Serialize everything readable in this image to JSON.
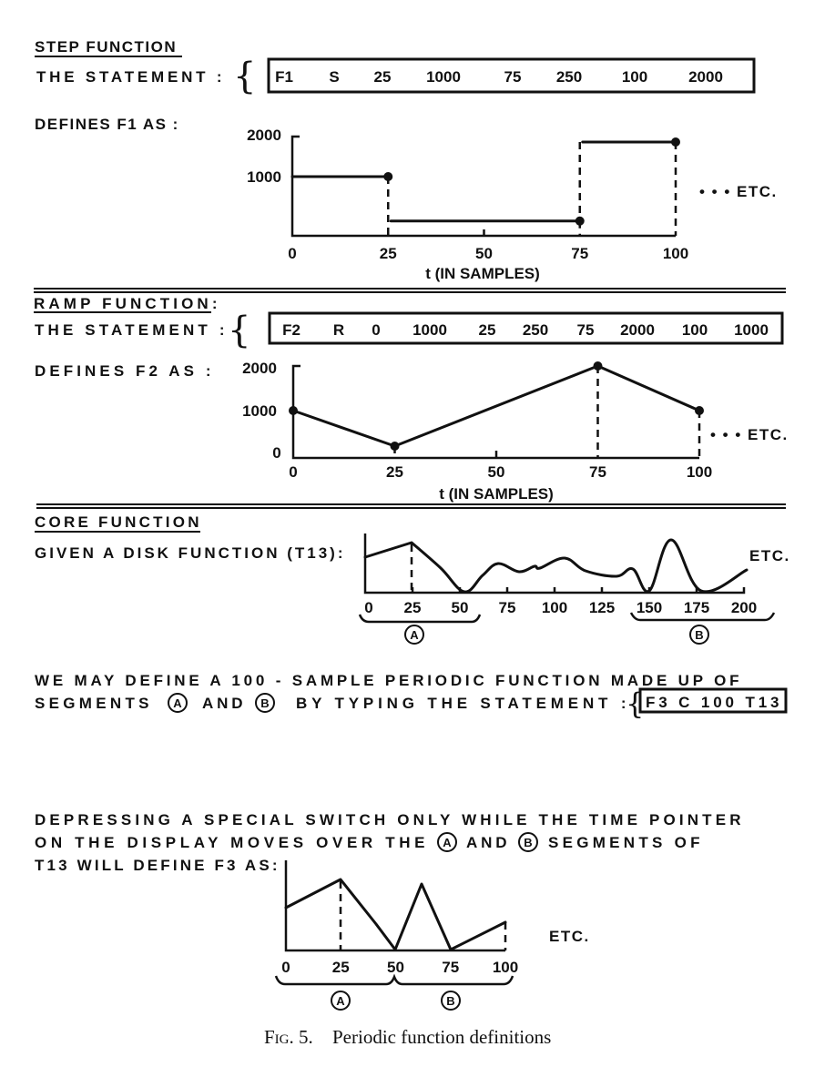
{
  "step": {
    "heading": "STEP FUNCTION",
    "statement_label": "THE STATEMENT :",
    "statement_tokens": [
      "F1",
      "S",
      "25",
      "1000",
      "75",
      "250",
      "100",
      "2000"
    ],
    "defines_label": "DEFINES F1 AS :",
    "etc": "• • • ETC.",
    "xlabel": "t (IN SAMPLES)"
  },
  "ramp": {
    "heading": "RAMP FUNCTION:",
    "statement_label": "THE STATEMENT :",
    "statement_tokens": [
      "F2",
      "R",
      "0",
      "1000",
      "25",
      "250",
      "75",
      "2000",
      "100",
      "1000"
    ],
    "defines_label": "DEFINES F2 AS :",
    "etc": "• • • ETC.",
    "xlabel": "t (IN SAMPLES)"
  },
  "core": {
    "heading": "CORE FUNCTION",
    "given_label": "GIVEN A DISK FUNCTION (T13):",
    "etc": "ETC.",
    "x_ticks": [
      "0",
      "25",
      "50",
      "75",
      "100",
      "125",
      "150",
      "175",
      "200"
    ],
    "segment_a": "A",
    "segment_b": "B",
    "para1_line1": "WE MAY DEFINE A 100 - SAMPLE PERIODIC FUNCTION MADE UP OF",
    "para1_line2_a": "SEGMENTS",
    "para1_line2_b": "AND",
    "para1_line2_c": "BY TYPING THE STATEMENT :",
    "statement": "F3 C 100 T13",
    "para2_line1": "DEPRESSING A SPECIAL SWITCH ONLY WHILE THE TIME POINTER",
    "para2_line2_a": "ON THE DISPLAY MOVES OVER THE",
    "para2_line2_b": "AND",
    "para2_line2_c": "SEGMENTS OF",
    "para2_line3": "T13 WILL DEFINE F3 AS:",
    "result_x_ticks": [
      "0",
      "25",
      "50",
      "75",
      "100"
    ],
    "result_etc": "ETC."
  },
  "caption": {
    "fig": "Fig. 5.",
    "text": "Periodic function definitions"
  },
  "chart_data": [
    {
      "type": "line",
      "name_text": "STEP FUNCTION",
      "interpolation": "step",
      "x_ticks": [
        0,
        25,
        50,
        75,
        100
      ],
      "y_ticks": [
        1000,
        2000
      ],
      "segments": [
        {
          "x0": 0,
          "x1": 25,
          "y": 1000
        },
        {
          "x0": 25,
          "x1": 75,
          "y": 250
        },
        {
          "x0": 75,
          "x1": 100,
          "y": 2000
        }
      ],
      "xlabel": "t (IN SAMPLES)",
      "xlim": [
        0,
        100
      ],
      "ylim": [
        0,
        2000
      ]
    },
    {
      "type": "line",
      "name_text": "RAMP FUNCTION",
      "x_ticks": [
        0,
        25,
        50,
        75,
        100
      ],
      "y_ticks": [
        0,
        1000,
        2000
      ],
      "x": [
        0,
        25,
        75,
        100
      ],
      "y": [
        1000,
        250,
        2000,
        1000
      ],
      "xlabel": "t (IN SAMPLES)",
      "xlim": [
        0,
        100
      ],
      "ylim": [
        0,
        2000
      ]
    }
  ]
}
